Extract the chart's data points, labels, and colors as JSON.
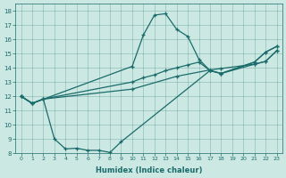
{
  "xlabel": "Humidex (Indice chaleur)",
  "xlim": [
    -0.5,
    23.5
  ],
  "ylim": [
    8,
    18.5
  ],
  "xticks": [
    0,
    1,
    2,
    3,
    4,
    5,
    6,
    7,
    8,
    9,
    10,
    11,
    12,
    13,
    14,
    15,
    16,
    17,
    18,
    19,
    20,
    21,
    22,
    23
  ],
  "yticks": [
    8,
    9,
    10,
    11,
    12,
    13,
    14,
    15,
    16,
    17,
    18
  ],
  "bg_color": "#cce8e2",
  "line_color": "#1a6b6b",
  "lines": [
    {
      "x": [
        0,
        1,
        10,
        11,
        12,
        13,
        14,
        15,
        16,
        17,
        18,
        21,
        22,
        23
      ],
      "y": [
        12,
        11.5,
        14.1,
        16.3,
        17.7,
        17.8,
        16.7,
        16.2,
        14.6,
        13.8,
        13.6,
        14.4,
        15.1,
        15.5
      ]
    },
    {
      "x": [
        0,
        1,
        2,
        10,
        11,
        12,
        13,
        14,
        15,
        16,
        17,
        18,
        21,
        22,
        23
      ],
      "y": [
        12,
        11.5,
        11.8,
        13.0,
        13.3,
        13.5,
        13.8,
        14.0,
        14.2,
        14.4,
        13.8,
        13.6,
        14.4,
        15.1,
        15.5
      ]
    },
    {
      "x": [
        0,
        1,
        2,
        10,
        14,
        17,
        18,
        21,
        22,
        23
      ],
      "y": [
        12,
        11.5,
        11.8,
        12.5,
        13.4,
        13.85,
        13.95,
        14.25,
        14.45,
        15.2
      ]
    },
    {
      "x": [
        0,
        1,
        2,
        3,
        4,
        5,
        6,
        7,
        8,
        9,
        17,
        18,
        21,
        22,
        23
      ],
      "y": [
        12,
        11.5,
        11.8,
        9.0,
        8.3,
        8.35,
        8.2,
        8.2,
        8.05,
        8.8,
        13.8,
        13.6,
        14.25,
        14.45,
        15.2
      ]
    }
  ]
}
